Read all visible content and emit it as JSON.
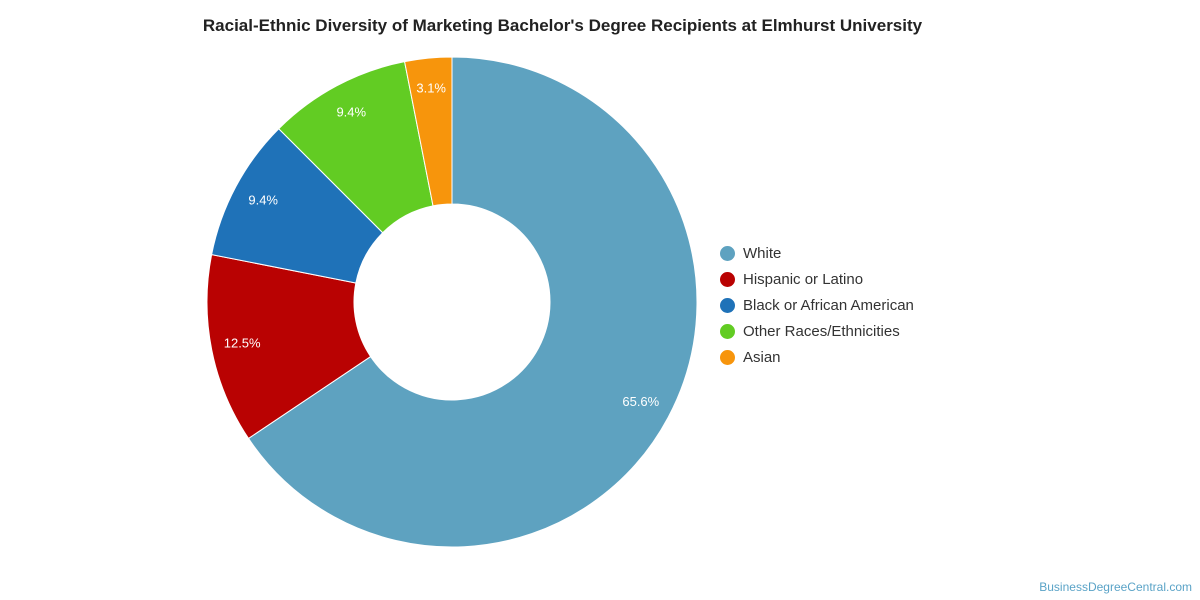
{
  "chart_data": {
    "type": "pie",
    "title": "Racial-Ethnic Diversity of Marketing Bachelor's Degree Recipients at Elmhurst University",
    "legend_position": "right",
    "slices": [
      {
        "name": "White",
        "value": 65.6,
        "label": "65.6%",
        "color": "#5ea2c0"
      },
      {
        "name": "Hispanic or Latino",
        "value": 12.5,
        "label": "12.5%",
        "color": "#b90202"
      },
      {
        "name": "Black or African American",
        "value": 9.4,
        "label": "9.4%",
        "color": "#1f72b8"
      },
      {
        "name": "Other Races/Ethnicities",
        "value": 9.4,
        "label": "9.4%",
        "color": "#62cc23"
      },
      {
        "name": "Asian",
        "value": 3.1,
        "label": "3.1%",
        "color": "#f7950c"
      }
    ]
  },
  "footer": {
    "source": "BusinessDegreeCentral.com"
  }
}
